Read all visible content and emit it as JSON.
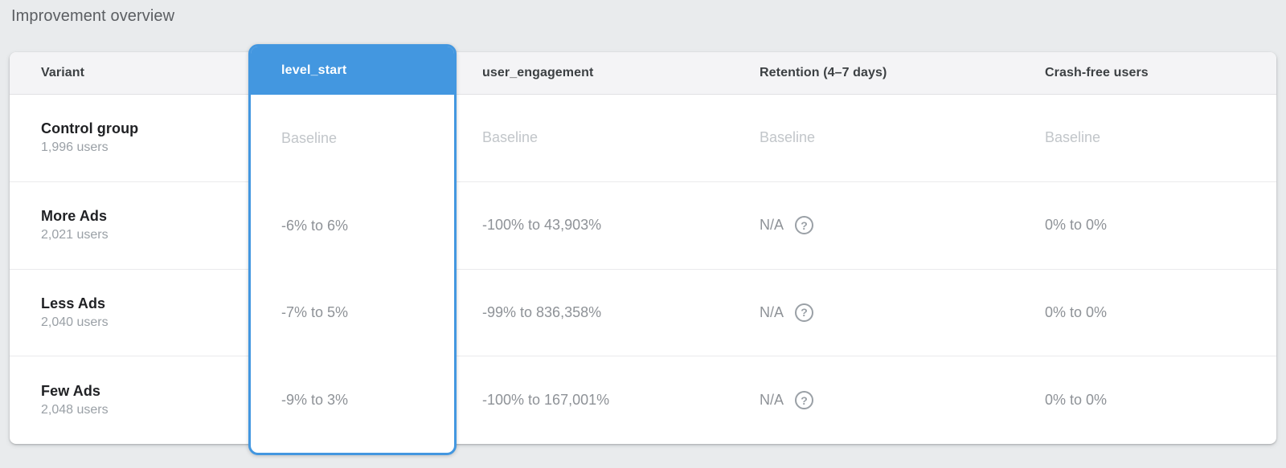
{
  "page": {
    "title": "Improvement overview"
  },
  "colors": {
    "page_background": "#e9ebed",
    "accent_blue": "#4397e0",
    "header_background": "#f4f4f6",
    "value_text": "#8e9297",
    "baseline_text": "#c2c6ca"
  },
  "icons": {
    "help": "?"
  },
  "table": {
    "columns": [
      {
        "key": "variant",
        "label": "Variant"
      },
      {
        "key": "level_start",
        "label": "level_start",
        "selected": true
      },
      {
        "key": "user_engagement",
        "label": "user_engagement"
      },
      {
        "key": "retention",
        "label": "Retention (4–7 days)"
      },
      {
        "key": "crash_free",
        "label": "Crash-free users"
      }
    ],
    "rows": [
      {
        "variant": "Control group",
        "users": "1,996 users",
        "level_start": "Baseline",
        "user_engagement": "Baseline",
        "retention": "Baseline",
        "retention_help": false,
        "crash_free": "Baseline",
        "baseline": true
      },
      {
        "variant": "More Ads",
        "users": "2,021 users",
        "level_start": "-6% to 6%",
        "user_engagement": "-100% to 43,903%",
        "retention": "N/A",
        "retention_help": true,
        "crash_free": "0% to 0%",
        "baseline": false
      },
      {
        "variant": "Less Ads",
        "users": "2,040 users",
        "level_start": "-7% to 5%",
        "user_engagement": "-99% to 836,358%",
        "retention": "N/A",
        "retention_help": true,
        "crash_free": "0% to 0%",
        "baseline": false
      },
      {
        "variant": "Few Ads",
        "users": "2,048 users",
        "level_start": "-9% to 3%",
        "user_engagement": "-100% to 167,001%",
        "retention": "N/A",
        "retention_help": true,
        "crash_free": "0% to 0%",
        "baseline": false
      }
    ]
  }
}
